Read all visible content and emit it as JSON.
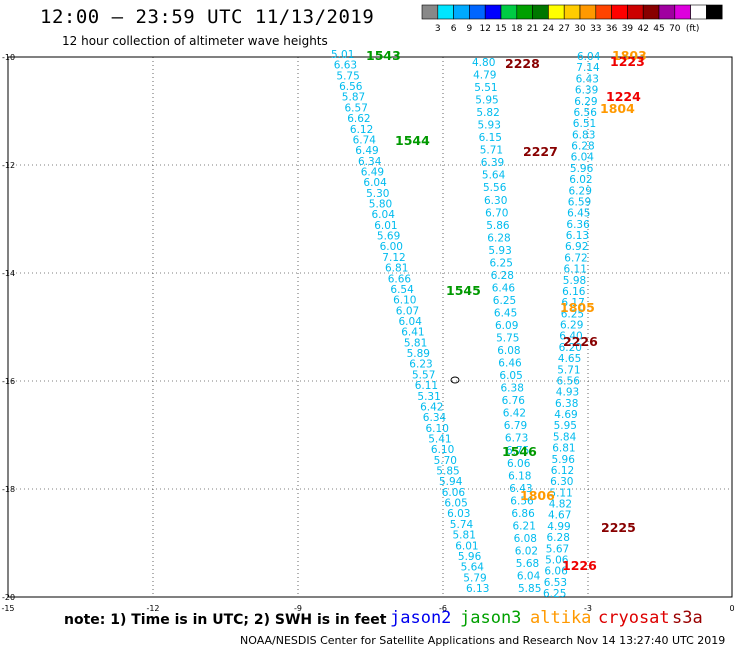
{
  "title": "12:00 — 23:59 UTC 11/13/2019",
  "subtitle": "12 hour collection of altimeter wave heights",
  "note": "note:  1) Time is in UTC;  2) SWH is in feet",
  "footer": "NOAA/NESDIS Center for Satellite Applications and Research    Nov 14 13:27:40 UTC 2019",
  "color_scale": {
    "colors": [
      "#888888",
      "#00e5ff",
      "#00aaff",
      "#0066ff",
      "#0000ff",
      "#00cc44",
      "#00a000",
      "#007700",
      "#ffff00",
      "#ffcc00",
      "#ff9900",
      "#ff4400",
      "#ff0000",
      "#cc0000",
      "#880000",
      "#a000a0",
      "#dd00dd",
      "#ffffff",
      "#000000"
    ],
    "labels": [
      "3",
      "6",
      "9",
      "12",
      "15",
      "18",
      "21",
      "24",
      "27",
      "30",
      "33",
      "36",
      "39",
      "42",
      "45",
      "70",
      "(ft)"
    ]
  },
  "satellites": [
    {
      "name": "jason2",
      "color": "#0000ee"
    },
    {
      "name": "jason3",
      "color": "#00a000"
    },
    {
      "name": "altika",
      "color": "#ff9900"
    },
    {
      "name": "cryosat",
      "color": "#dd0000"
    },
    {
      "name": "s3a",
      "color": "#990000"
    }
  ],
  "axes": {
    "x_ticks": [
      "-15",
      "-12",
      "-9",
      "-6",
      "-3",
      "0"
    ],
    "y_ticks": [
      "-10",
      "-12",
      "-14",
      "-16",
      "-18",
      "-20"
    ]
  },
  "tracks": [
    {
      "id": "1543",
      "satellite": "jason3",
      "color": "#009900"
    },
    {
      "id": "1544",
      "satellite": "jason3",
      "color": "#009900"
    },
    {
      "id": "1545",
      "satellite": "jason3",
      "color": "#009900"
    },
    {
      "id": "1546",
      "satellite": "jason3",
      "color": "#009900"
    },
    {
      "id": "2228",
      "satellite": "s3a",
      "color": "#880000"
    },
    {
      "id": "2227",
      "satellite": "s3a",
      "color": "#880000"
    },
    {
      "id": "2226",
      "satellite": "s3a",
      "color": "#880000"
    },
    {
      "id": "2225",
      "satellite": "s3a",
      "color": "#880000"
    },
    {
      "id": "1803",
      "satellite": "altika",
      "color": "#ff9900"
    },
    {
      "id": "1804",
      "satellite": "altika",
      "color": "#ff9900"
    },
    {
      "id": "1805",
      "satellite": "altika",
      "color": "#ff9900"
    },
    {
      "id": "1806",
      "satellite": "altika",
      "color": "#ff9900"
    },
    {
      "id": "1223",
      "satellite": "cryosat",
      "color": "#ee0000"
    },
    {
      "id": "1224",
      "satellite": "cryosat",
      "color": "#ee0000"
    },
    {
      "id": "1226",
      "satellite": "cryosat",
      "color": "#ee0000"
    }
  ],
  "swh_color": "#00bbee",
  "jason3_swh": [
    "5.01",
    "6.63",
    "5.75",
    "6.56",
    "5.87",
    "6.57",
    "6.62",
    "6.12",
    "6.74",
    "6.49",
    "6.34",
    "6.49",
    "6.04",
    "5.30",
    "5.80",
    "6.04",
    "6.01",
    "5.69",
    "6.00",
    "7.12",
    "6.81",
    "6.66",
    "6.54",
    "6.10",
    "6.07",
    "6.04",
    "6.41",
    "5.81",
    "5.89",
    "6.23",
    "5.57",
    "6.11",
    "5.31",
    "6.42",
    "6.34",
    "6.10",
    "5.41",
    "6.10",
    "5.70",
    "5.85",
    "5.94",
    "6.06",
    "6.05",
    "6.03",
    "5.74",
    "5.81",
    "6.01",
    "5.96",
    "5.64",
    "5.79",
    "6.13"
  ],
  "altika_swh": [
    "4.80",
    "4.79",
    "5.51",
    "5.95",
    "5.82",
    "5.93",
    "6.15",
    "5.71",
    "6.39",
    "5.64",
    "5.56",
    "6.30",
    "6.70",
    "5.86",
    "6.28",
    "5.93",
    "6.25",
    "6.28",
    "6.46",
    "6.25",
    "6.45",
    "6.09",
    "5.75",
    "6.08",
    "6.46",
    "6.05",
    "6.38",
    "6.76",
    "6.42",
    "6.79",
    "6.73",
    "6.75",
    "6.06",
    "6.18",
    "6.43",
    "6.56",
    "6.86",
    "6.21",
    "6.08",
    "6.02",
    "5.68",
    "6.04",
    "5.85"
  ],
  "s3a_swh": [
    "6.04",
    "7.14",
    "6.43",
    "6.39",
    "6.29",
    "6.56",
    "6.51",
    "6.83",
    "6.28",
    "6.04",
    "5.96",
    "6.02",
    "6.29",
    "6.59",
    "6.45",
    "6.36",
    "6.13",
    "6.92",
    "6.72",
    "6.11",
    "5.98",
    "6.16",
    "6.17",
    "6.25",
    "6.29",
    "6.40",
    "6.20",
    "4.65",
    "5.71",
    "6.56",
    "4.93",
    "6.38",
    "4.69",
    "5.95",
    "5.84",
    "6.81",
    "5.96",
    "6.12",
    "6.30",
    "5.11",
    "4.82",
    "4.67",
    "4.99",
    "6.28",
    "5.67",
    "5.06",
    "6.06",
    "6.53",
    "6.25"
  ]
}
